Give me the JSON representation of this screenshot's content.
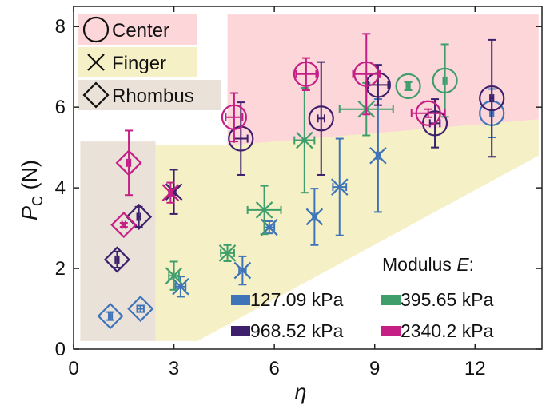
{
  "chart_data": {
    "type": "scatter",
    "xlabel": "η",
    "ylabel": "P",
    "ylabel_sub": "C",
    "ylabel_unit": "(N)",
    "xlim": [
      0,
      14
    ],
    "ylim": [
      0,
      8.5
    ],
    "xticks": [
      0,
      3,
      6,
      9,
      12
    ],
    "yticks": [
      0,
      2,
      4,
      6,
      8
    ],
    "grid": false,
    "regions": [
      {
        "name": "Center",
        "color": "#fdd6da",
        "polygon": [
          [
            4.6,
            8.3
          ],
          [
            13.9,
            8.3
          ],
          [
            13.9,
            5.7
          ],
          [
            4.6,
            5.0
          ]
        ]
      },
      {
        "name": "Finger",
        "color": "#f5f0c6",
        "polygon": [
          [
            2.45,
            5.05
          ],
          [
            4.6,
            5.05
          ],
          [
            13.9,
            5.7
          ],
          [
            13.9,
            4.8
          ],
          [
            3.7,
            0.2
          ],
          [
            2.45,
            0.2
          ]
        ]
      },
      {
        "name": "Rhombus",
        "color": "#eae2d8",
        "polygon": [
          [
            0.2,
            5.15
          ],
          [
            2.45,
            5.15
          ],
          [
            2.45,
            0.2
          ],
          [
            0.2,
            0.2
          ]
        ]
      }
    ],
    "shape_legend": {
      "position": "top-left",
      "items": [
        {
          "label": "Center",
          "marker": "circle",
          "swatch_color": "#fdd6da"
        },
        {
          "label": "Finger",
          "marker": "x",
          "swatch_color": "#f5f0c6"
        },
        {
          "label": "Rhombus",
          "marker": "diamond",
          "swatch_color": "#eae2d8"
        }
      ]
    },
    "color_legend": {
      "title": "Modulus E:",
      "position": "bottom-right",
      "items": [
        {
          "label": "127.09 kPa",
          "color": "#3f74b8"
        },
        {
          "label": "395.65 kPa",
          "color": "#3f9e6b"
        },
        {
          "label": "968.52 kPa",
          "color": "#3d1f6b"
        },
        {
          "label": "2340.2 kPa",
          "color": "#c51f86"
        }
      ]
    },
    "series": [
      {
        "color": "#3f74b8",
        "points": [
          {
            "x": 1.1,
            "y": 0.82,
            "marker": "diamond",
            "xerr": 0.05,
            "yerr": 0.1
          },
          {
            "x": 2.0,
            "y": 1.0,
            "marker": "diamond",
            "xerr": 0.1,
            "yerr": 0.08
          },
          {
            "x": 3.2,
            "y": 1.55,
            "marker": "x",
            "xerr": 0.15,
            "yerr": 0.25
          },
          {
            "x": 5.05,
            "y": 1.95,
            "marker": "x",
            "xerr": 0.1,
            "yerr": 0.35
          },
          {
            "x": 5.85,
            "y": 3.02,
            "marker": "x",
            "xerr": 0.15,
            "yerr": 0.15
          },
          {
            "x": 7.2,
            "y": 3.28,
            "marker": "x",
            "xerr": 0.05,
            "yerr": 0.7
          },
          {
            "x": 7.95,
            "y": 4.02,
            "marker": "x",
            "xerr": 0.2,
            "yerr": 1.2
          },
          {
            "x": 9.1,
            "y": 4.8,
            "marker": "x",
            "xerr": 0.05,
            "yerr": 1.4
          },
          {
            "x": 12.5,
            "y": 5.85,
            "marker": "circle",
            "xerr": 0.05,
            "yerr": 0.6
          }
        ]
      },
      {
        "color": "#3f9e6b",
        "points": [
          {
            "x": 3.0,
            "y": 1.82,
            "marker": "x",
            "xerr": 0.15,
            "yerr": 0.35
          },
          {
            "x": 4.6,
            "y": 2.38,
            "marker": "x",
            "xerr": 0.2,
            "yerr": 0.2
          },
          {
            "x": 5.7,
            "y": 3.45,
            "marker": "x",
            "xerr": 0.5,
            "yerr": 0.6
          },
          {
            "x": 6.9,
            "y": 5.18,
            "marker": "x",
            "xerr": 0.3,
            "yerr": 1.3
          },
          {
            "x": 8.75,
            "y": 5.95,
            "marker": "x",
            "xerr": 0.8,
            "yerr": 0.65
          },
          {
            "x": 10.0,
            "y": 6.52,
            "marker": "circle",
            "xerr": 0.05,
            "yerr": 0.1
          },
          {
            "x": 11.1,
            "y": 6.66,
            "marker": "circle",
            "xerr": 0.05,
            "yerr": 0.9
          }
        ]
      },
      {
        "color": "#3d1f6b",
        "points": [
          {
            "x": 1.3,
            "y": 2.22,
            "marker": "diamond",
            "xerr": 0.05,
            "yerr": 0.2
          },
          {
            "x": 1.95,
            "y": 3.28,
            "marker": "diamond",
            "xerr": 0.05,
            "yerr": 0.25
          },
          {
            "x": 3.0,
            "y": 3.9,
            "marker": "x",
            "xerr": 0.05,
            "yerr": 0.55
          },
          {
            "x": 5.0,
            "y": 5.22,
            "marker": "circle",
            "xerr": 0.2,
            "yerr": 0.9
          },
          {
            "x": 7.4,
            "y": 5.72,
            "marker": "circle",
            "xerr": 0.1,
            "yerr": 1.4
          },
          {
            "x": 9.1,
            "y": 6.55,
            "marker": "circle",
            "xerr": 0.3,
            "yerr": 0.5
          },
          {
            "x": 10.8,
            "y": 5.6,
            "marker": "circle",
            "xerr": 0.15,
            "yerr": 0.6
          },
          {
            "x": 12.5,
            "y": 6.22,
            "marker": "circle",
            "xerr": 0.05,
            "yerr": 1.45
          }
        ]
      },
      {
        "color": "#c51f86",
        "points": [
          {
            "x": 1.5,
            "y": 3.08,
            "marker": "diamond",
            "xerr": 0.05,
            "yerr": 0.05
          },
          {
            "x": 1.65,
            "y": 4.62,
            "marker": "diamond",
            "xerr": 0.05,
            "yerr": 0.8
          },
          {
            "x": 2.9,
            "y": 3.88,
            "marker": "x",
            "xerr": 0.05,
            "yerr": 0.25
          },
          {
            "x": 4.8,
            "y": 5.75,
            "marker": "circle",
            "xerr": 0.25,
            "yerr": 0.6
          },
          {
            "x": 6.95,
            "y": 6.82,
            "marker": "circle",
            "xerr": 0.3,
            "yerr": 0.4
          },
          {
            "x": 8.75,
            "y": 6.82,
            "marker": "circle",
            "xerr": 0.4,
            "yerr": 1.0
          },
          {
            "x": 10.6,
            "y": 5.85,
            "marker": "circle",
            "xerr": 0.5,
            "yerr": 0.1
          }
        ]
      }
    ]
  }
}
